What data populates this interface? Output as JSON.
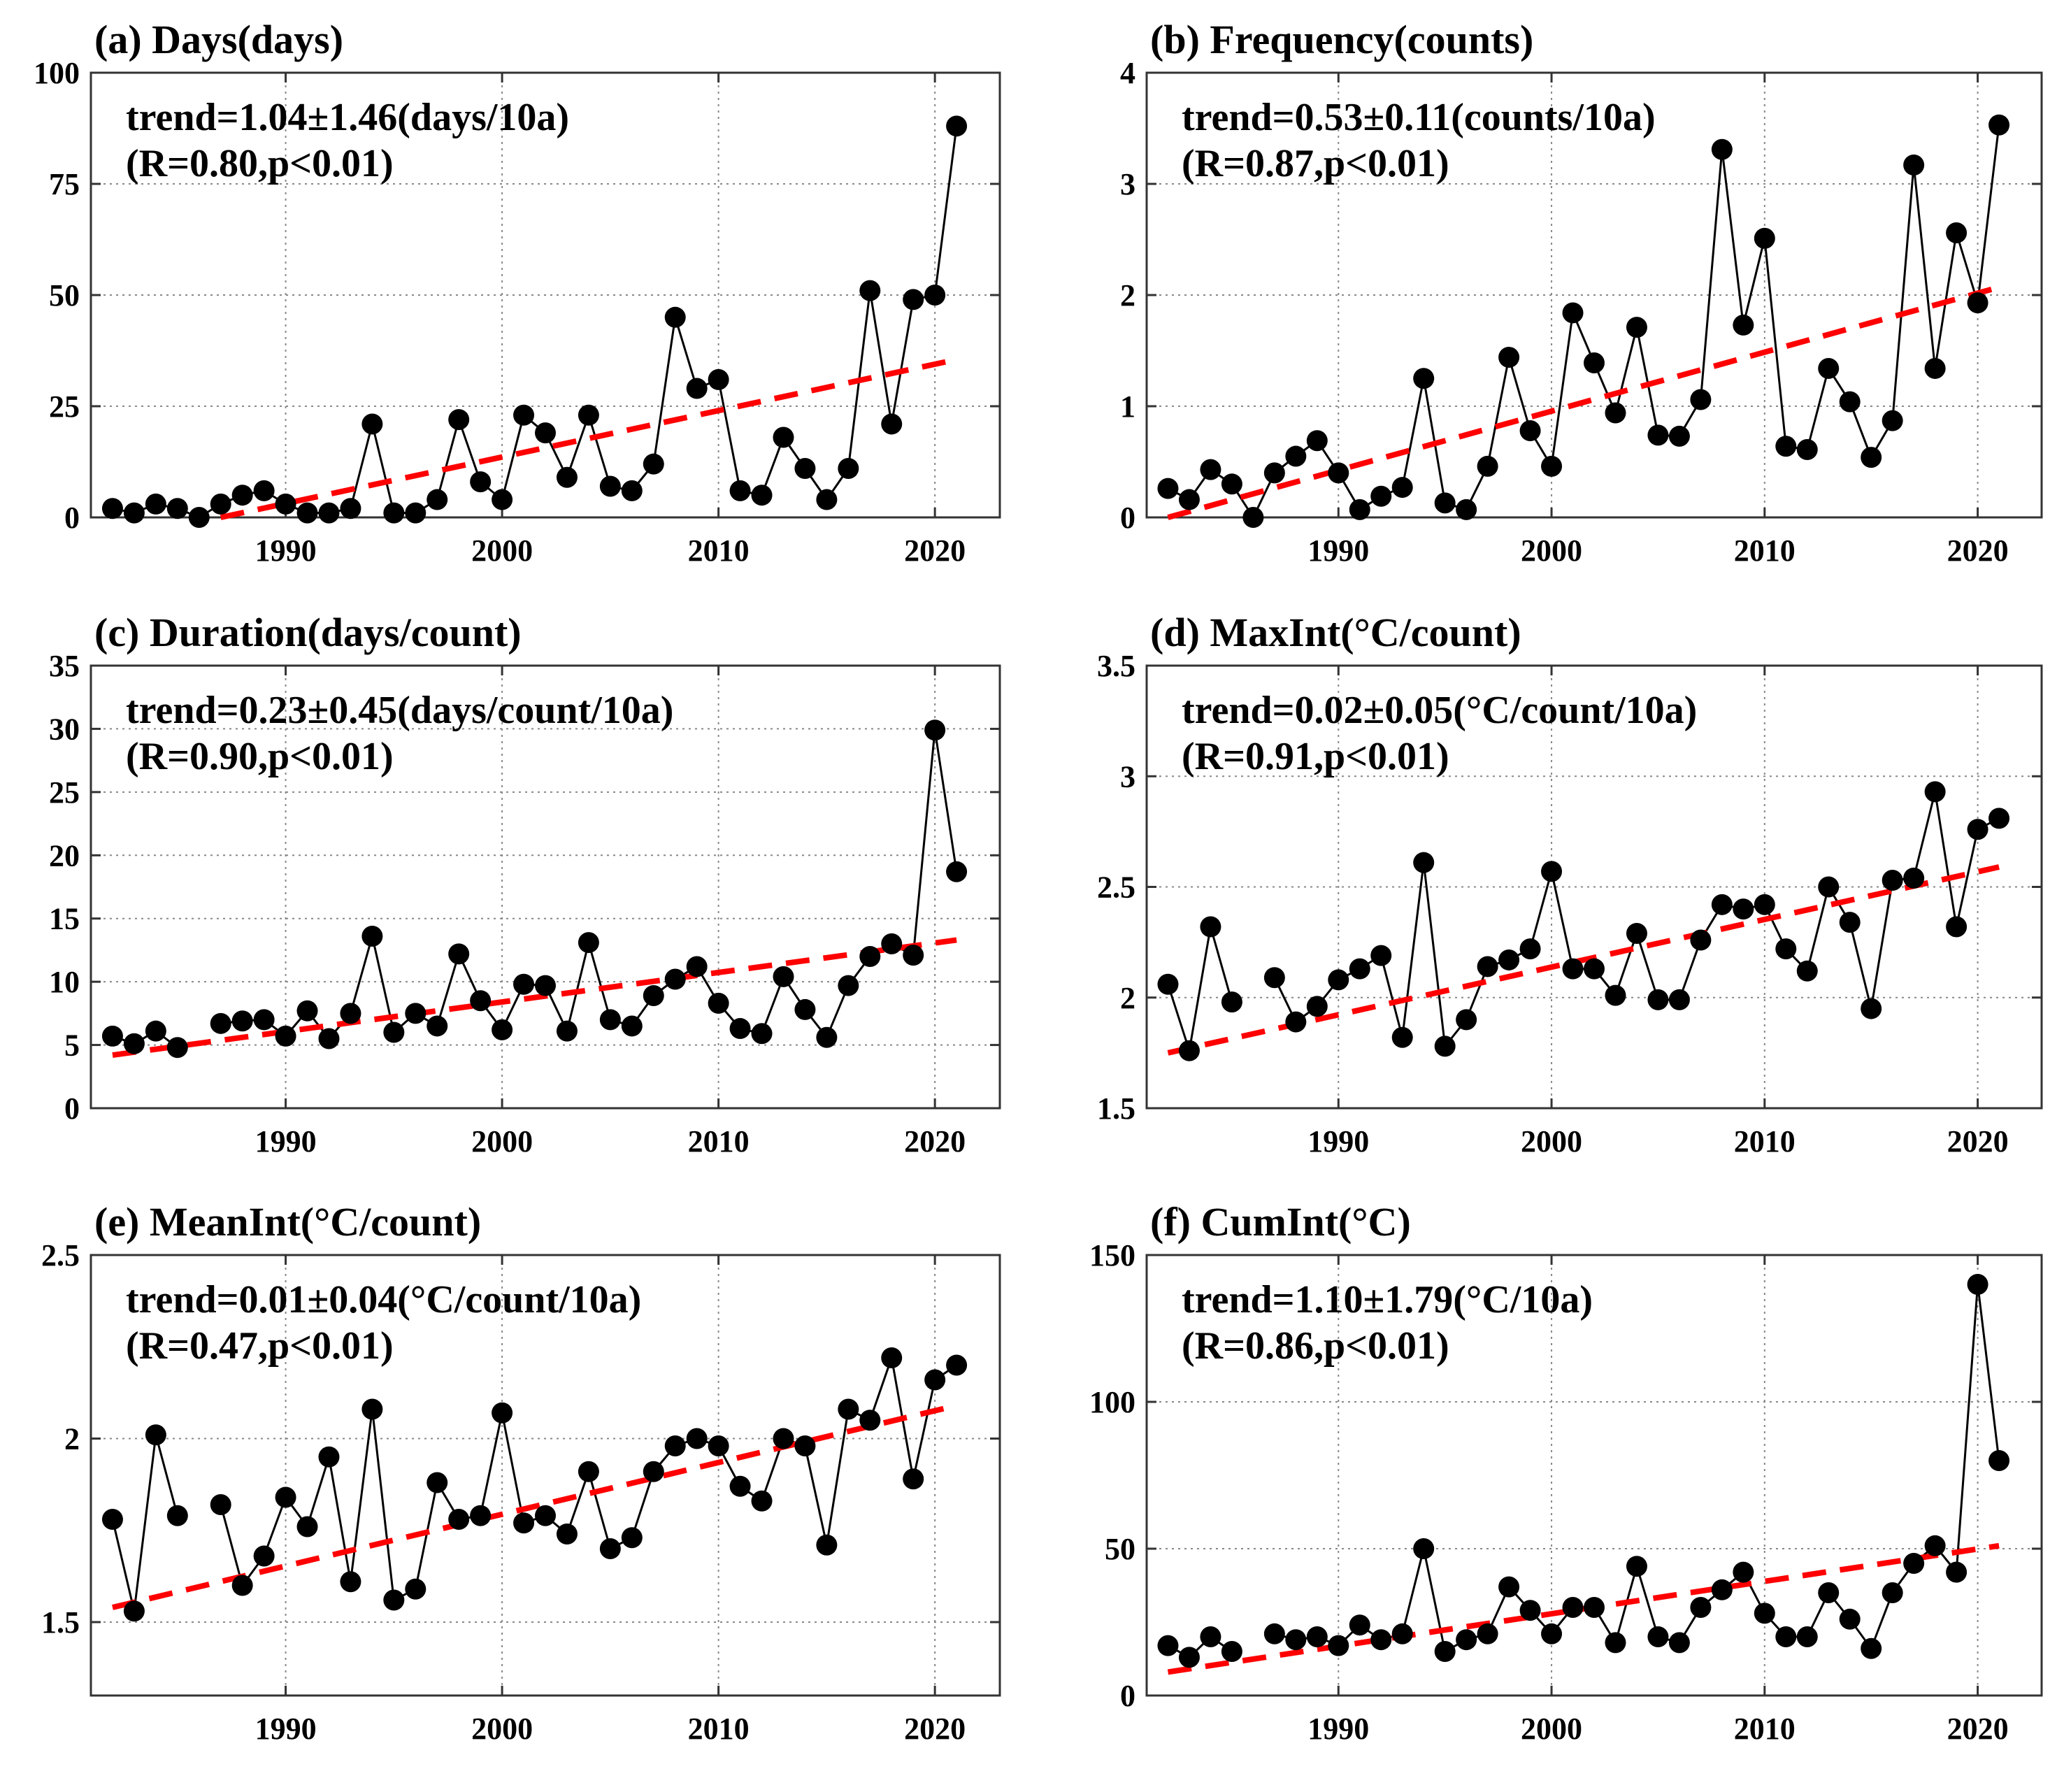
{
  "chart_data": [
    {
      "type": "line",
      "panel": "a",
      "title": "(a) Days(days)",
      "trend_text": "trend=1.04±1.46(days/10a)",
      "stats_text": "(R=0.80,p<0.01)",
      "xlabel": "",
      "ylabel": "",
      "xlim": [
        1981,
        2023
      ],
      "ylim": [
        0,
        100
      ],
      "xticks": [
        1990,
        2000,
        2010,
        2020
      ],
      "yticks": [
        0,
        25,
        50,
        75,
        100
      ],
      "x": [
        1982,
        1983,
        1984,
        1985,
        1986,
        1987,
        1988,
        1989,
        1990,
        1991,
        1992,
        1993,
        1994,
        1995,
        1996,
        1997,
        1998,
        1999,
        2000,
        2001,
        2002,
        2003,
        2004,
        2005,
        2006,
        2007,
        2008,
        2009,
        2010,
        2011,
        2012,
        2013,
        2014,
        2015,
        2016,
        2017,
        2018,
        2019,
        2020,
        2021
      ],
      "values": [
        2,
        1,
        3,
        2,
        0,
        3,
        5,
        6,
        3,
        1,
        1,
        2,
        21,
        1,
        1,
        4,
        22,
        8,
        4,
        23,
        19,
        9,
        23,
        7,
        6,
        12,
        45,
        29,
        31,
        6,
        5,
        18,
        11,
        4,
        11,
        51,
        21,
        49,
        50,
        88
      ],
      "trend": {
        "x": [
          1987,
          2021
        ],
        "y": [
          0,
          35.5
        ]
      }
    },
    {
      "type": "line",
      "panel": "b",
      "title": "(b) Frequency(counts)",
      "trend_text": "trend=0.53±0.11(counts/10a)",
      "stats_text": "(R=0.87,p<0.01)",
      "xlabel": "",
      "ylabel": "",
      "xlim": [
        1981,
        2023
      ],
      "ylim": [
        0,
        4
      ],
      "xticks": [
        1990,
        2000,
        2010,
        2020
      ],
      "yticks": [
        0,
        1,
        2,
        3,
        4
      ],
      "x": [
        1982,
        1983,
        1984,
        1985,
        1986,
        1987,
        1988,
        1989,
        1990,
        1991,
        1992,
        1993,
        1994,
        1995,
        1996,
        1997,
        1998,
        1999,
        2000,
        2001,
        2002,
        2003,
        2004,
        2005,
        2006,
        2007,
        2008,
        2009,
        2010,
        2011,
        2012,
        2013,
        2014,
        2015,
        2016,
        2017,
        2018,
        2019,
        2020,
        2021
      ],
      "values": [
        0.26,
        0.16,
        0.43,
        0.3,
        0.0,
        0.4,
        0.55,
        0.69,
        0.4,
        0.07,
        0.19,
        0.27,
        1.25,
        0.13,
        0.07,
        0.46,
        1.44,
        0.78,
        0.46,
        1.84,
        1.39,
        0.94,
        1.71,
        0.74,
        0.73,
        1.06,
        3.31,
        1.73,
        2.51,
        0.64,
        0.61,
        1.34,
        1.04,
        0.54,
        0.87,
        3.17,
        1.34,
        2.56,
        1.93,
        3.53
      ],
      "trend": {
        "x": [
          1982,
          2021
        ],
        "y": [
          0.0,
          2.07
        ]
      }
    },
    {
      "type": "line",
      "panel": "c",
      "title": "(c) Duration(days/count)",
      "trend_text": "trend=0.23±0.45(days/count/10a)",
      "stats_text": "(R=0.90,p<0.01)",
      "xlabel": "",
      "ylabel": "",
      "xlim": [
        1981,
        2023
      ],
      "ylim": [
        0,
        35
      ],
      "xticks": [
        1990,
        2000,
        2010,
        2020
      ],
      "yticks": [
        0,
        5,
        10,
        15,
        20,
        25,
        30,
        35
      ],
      "x": [
        1982,
        1983,
        1984,
        1985,
        1987,
        1988,
        1989,
        1990,
        1991,
        1992,
        1993,
        1994,
        1995,
        1996,
        1997,
        1998,
        1999,
        2000,
        2001,
        2002,
        2003,
        2004,
        2005,
        2006,
        2007,
        2008,
        2009,
        2010,
        2011,
        2012,
        2013,
        2014,
        2015,
        2016,
        2017,
        2018,
        2019,
        2020,
        2021
      ],
      "values": [
        5.7,
        5.1,
        6.1,
        4.8,
        6.7,
        6.9,
        7.0,
        5.7,
        7.7,
        5.5,
        7.5,
        13.6,
        6.0,
        7.5,
        6.5,
        12.2,
        8.5,
        6.2,
        9.8,
        9.7,
        6.1,
        13.1,
        7.0,
        6.5,
        8.9,
        10.2,
        11.2,
        8.3,
        6.3,
        5.9,
        10.4,
        7.8,
        5.6,
        9.7,
        12.0,
        13.0,
        12.1,
        29.9,
        18.7
      ],
      "trend": {
        "x": [
          1982,
          2021
        ],
        "y": [
          4.2,
          13.3
        ]
      }
    },
    {
      "type": "line",
      "panel": "d",
      "title": "(d) MaxInt(°C/count)",
      "trend_text": "trend=0.02±0.05(°C/count/10a)",
      "stats_text": "(R=0.91,p<0.01)",
      "xlabel": "",
      "ylabel": "",
      "xlim": [
        1981,
        2023
      ],
      "ylim": [
        1.5,
        3.5
      ],
      "xticks": [
        1990,
        2000,
        2010,
        2020
      ],
      "yticks": [
        1.5,
        2,
        2.5,
        3,
        3.5
      ],
      "ytick_labels": [
        "1.5",
        "2",
        "2.5",
        "3",
        "3.5"
      ],
      "x": [
        1982,
        1983,
        1984,
        1985,
        1987,
        1988,
        1989,
        1990,
        1991,
        1992,
        1993,
        1994,
        1995,
        1996,
        1997,
        1998,
        1999,
        2000,
        2001,
        2002,
        2003,
        2004,
        2005,
        2006,
        2007,
        2008,
        2009,
        2010,
        2011,
        2012,
        2013,
        2014,
        2015,
        2016,
        2017,
        2018,
        2019,
        2020,
        2021
      ],
      "values": [
        2.06,
        1.76,
        2.32,
        1.98,
        2.09,
        1.89,
        1.96,
        2.08,
        2.13,
        2.19,
        1.82,
        2.61,
        1.78,
        1.9,
        2.14,
        2.17,
        2.22,
        2.57,
        2.13,
        2.13,
        2.01,
        2.29,
        1.99,
        1.99,
        2.26,
        2.42,
        2.4,
        2.42,
        2.22,
        2.12,
        2.5,
        2.34,
        1.95,
        2.53,
        2.54,
        2.93,
        2.32,
        2.76,
        2.81
      ],
      "trend": {
        "x": [
          1982,
          2021
        ],
        "y": [
          1.75,
          2.59
        ]
      }
    },
    {
      "type": "line",
      "panel": "e",
      "title": "(e) MeanInt(°C/count)",
      "trend_text": "trend=0.01±0.04(°C/count/10a)",
      "stats_text": "(R=0.47,p<0.01)",
      "xlabel": "",
      "ylabel": "",
      "xlim": [
        1981,
        2023
      ],
      "ylim": [
        1.3,
        2.5
      ],
      "xticks": [
        1990,
        2000,
        2010,
        2020
      ],
      "yticks": [
        1.5,
        2,
        2.5
      ],
      "ytick_labels": [
        "1.5",
        "2",
        "2.5"
      ],
      "x": [
        1982,
        1983,
        1984,
        1985,
        1987,
        1988,
        1989,
        1990,
        1991,
        1992,
        1993,
        1994,
        1995,
        1996,
        1997,
        1998,
        1999,
        2000,
        2001,
        2002,
        2003,
        2004,
        2005,
        2006,
        2007,
        2008,
        2009,
        2010,
        2011,
        2012,
        2013,
        2014,
        2015,
        2016,
        2017,
        2018,
        2019,
        2020,
        2021
      ],
      "values": [
        1.78,
        1.53,
        2.01,
        1.79,
        1.82,
        1.6,
        1.68,
        1.84,
        1.76,
        1.95,
        1.61,
        2.08,
        1.56,
        1.59,
        1.88,
        1.78,
        1.79,
        2.07,
        1.77,
        1.79,
        1.74,
        1.91,
        1.7,
        1.73,
        1.91,
        1.98,
        2.0,
        1.98,
        1.87,
        1.83,
        2.0,
        1.98,
        1.71,
        2.08,
        2.05,
        2.22,
        1.89,
        2.16,
        2.2
      ],
      "trend": {
        "x": [
          1982,
          2021
        ],
        "y": [
          1.54,
          2.09
        ]
      }
    },
    {
      "type": "line",
      "panel": "f",
      "title": "(f) CumInt(°C)",
      "trend_text": "trend=1.10±1.79(°C/10a)",
      "stats_text": "(R=0.86,p<0.01)",
      "xlabel": "",
      "ylabel": "",
      "xlim": [
        1981,
        2023
      ],
      "ylim": [
        0,
        150
      ],
      "xticks": [
        1990,
        2000,
        2010,
        2020
      ],
      "yticks": [
        0,
        50,
        100,
        150
      ],
      "x": [
        1982,
        1983,
        1984,
        1985,
        1987,
        1988,
        1989,
        1990,
        1991,
        1992,
        1993,
        1994,
        1995,
        1996,
        1997,
        1998,
        1999,
        2000,
        2001,
        2002,
        2003,
        2004,
        2005,
        2006,
        2007,
        2008,
        2009,
        2010,
        2011,
        2012,
        2013,
        2014,
        2015,
        2016,
        2017,
        2018,
        2019,
        2020,
        2021
      ],
      "values": [
        17,
        13,
        20,
        15,
        21,
        19,
        20,
        17,
        24,
        19,
        21,
        50,
        15,
        19,
        21,
        37,
        29,
        21,
        30,
        30,
        18,
        44,
        20,
        18,
        30,
        36,
        42,
        28,
        20,
        20,
        35,
        26,
        16,
        35,
        45,
        51,
        42,
        140,
        80
      ],
      "trend": {
        "x": [
          1982,
          2021
        ],
        "y": [
          8,
          51
        ]
      }
    }
  ]
}
